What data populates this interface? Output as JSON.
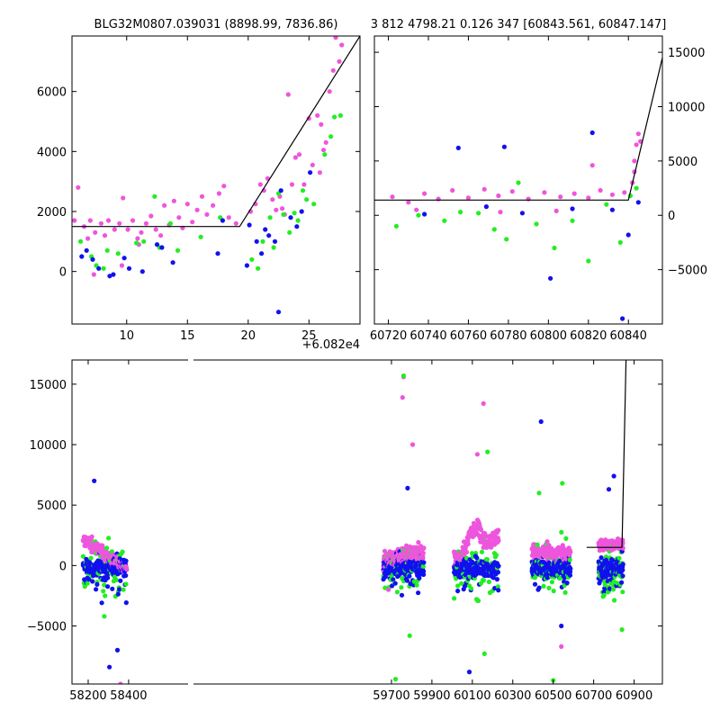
{
  "chart_data": [
    {
      "type": "scatter",
      "title": "BLG32M0807.039031 (8898.99, 7836.86)",
      "xlabel": "",
      "ylabel": "",
      "xlim": [
        5.5,
        29.2
      ],
      "ylim": [
        -1750,
        7850
      ],
      "xticks": [
        10,
        15,
        20,
        25
      ],
      "yticks": [
        0,
        2000,
        4000,
        6000
      ],
      "x_offset_label": "+6.082e4",
      "ytick_side": "left",
      "grid": false,
      "colors": {
        "magenta": "#ee55dd",
        "green": "#22ee22",
        "blue": "#1111ee",
        "line": "#000000"
      },
      "model_line": {
        "x": [
          5.5,
          19.3,
          29.2
        ],
        "y": [
          1500,
          1500,
          7850
        ]
      },
      "series": [
        {
          "color": "magenta",
          "points": [
            [
              5.7,
              1700
            ],
            [
              6.0,
              2800
            ],
            [
              6.5,
              1500
            ],
            [
              6.8,
              1100
            ],
            [
              7.0,
              1700
            ],
            [
              7.4,
              1300
            ],
            [
              7.9,
              1600
            ],
            [
              8.2,
              1200
            ],
            [
              8.5,
              1700
            ],
            [
              9.0,
              1400
            ],
            [
              9.4,
              1600
            ],
            [
              9.7,
              2450
            ],
            [
              10.1,
              1400
            ],
            [
              10.5,
              1700
            ],
            [
              10.9,
              1100
            ],
            [
              11.2,
              1300
            ],
            [
              11.6,
              1600
            ],
            [
              12.0,
              1850
            ],
            [
              12.4,
              1400
            ],
            [
              12.8,
              1200
            ],
            [
              13.1,
              2200
            ],
            [
              13.5,
              1550
            ],
            [
              13.9,
              2350
            ],
            [
              14.3,
              1800
            ],
            [
              14.6,
              1450
            ],
            [
              15.0,
              2250
            ],
            [
              15.4,
              1650
            ],
            [
              15.8,
              2050
            ],
            [
              16.2,
              2500
            ],
            [
              16.6,
              1900
            ],
            [
              17.1,
              2200
            ],
            [
              17.6,
              2600
            ],
            [
              18.0,
              2850
            ],
            [
              18.4,
              1800
            ],
            [
              19.0,
              1600
            ],
            [
              20.2,
              2000
            ],
            [
              20.6,
              2250
            ],
            [
              21.0,
              2900
            ],
            [
              21.3,
              2700
            ],
            [
              21.6,
              3100
            ],
            [
              22.0,
              2400
            ],
            [
              22.3,
              2050
            ],
            [
              22.6,
              2500
            ],
            [
              23.0,
              1900
            ],
            [
              23.3,
              5900
            ],
            [
              23.6,
              2900
            ],
            [
              23.9,
              3800
            ],
            [
              24.2,
              3900
            ],
            [
              24.6,
              2900
            ],
            [
              25.0,
              5100
            ],
            [
              25.3,
              3550
            ],
            [
              25.7,
              5200
            ],
            [
              26.0,
              4900
            ],
            [
              26.4,
              4300
            ],
            [
              26.7,
              6000
            ],
            [
              27.0,
              6700
            ],
            [
              27.2,
              7800
            ],
            [
              27.5,
              7000
            ],
            [
              27.7,
              7550
            ],
            [
              26.2,
              4050
            ],
            [
              25.9,
              3300
            ],
            [
              22.8,
              2100
            ],
            [
              7.3,
              -100
            ],
            [
              9.6,
              200
            ],
            [
              11.0,
              900
            ]
          ]
        },
        {
          "color": "green",
          "points": [
            [
              6.2,
              1000
            ],
            [
              7.1,
              500
            ],
            [
              7.5,
              200
            ],
            [
              8.1,
              100
            ],
            [
              8.4,
              700
            ],
            [
              9.3,
              600
            ],
            [
              10.8,
              950
            ],
            [
              11.4,
              1000
            ],
            [
              12.3,
              2500
            ],
            [
              12.7,
              800
            ],
            [
              13.6,
              1600
            ],
            [
              14.2,
              700
            ],
            [
              16.1,
              1150
            ],
            [
              17.7,
              1800
            ],
            [
              20.3,
              400
            ],
            [
              20.8,
              100
            ],
            [
              21.2,
              1000
            ],
            [
              21.8,
              1800
            ],
            [
              22.1,
              800
            ],
            [
              22.5,
              2600
            ],
            [
              22.9,
              1900
            ],
            [
              23.4,
              1300
            ],
            [
              23.8,
              1950
            ],
            [
              24.1,
              1700
            ],
            [
              24.5,
              2700
            ],
            [
              24.8,
              2400
            ],
            [
              25.4,
              2250
            ],
            [
              26.3,
              3900
            ],
            [
              26.8,
              4500
            ],
            [
              27.1,
              5150
            ],
            [
              27.6,
              5200
            ]
          ]
        },
        {
          "color": "blue",
          "points": [
            [
              6.3,
              500
            ],
            [
              6.7,
              700
            ],
            [
              7.2,
              400
            ],
            [
              7.7,
              100
            ],
            [
              8.6,
              -150
            ],
            [
              8.9,
              -100
            ],
            [
              9.8,
              450
            ],
            [
              10.2,
              100
            ],
            [
              11.3,
              0
            ],
            [
              12.5,
              900
            ],
            [
              12.9,
              800
            ],
            [
              13.8,
              300
            ],
            [
              17.5,
              600
            ],
            [
              17.9,
              1700
            ],
            [
              19.9,
              200
            ],
            [
              20.1,
              1550
            ],
            [
              20.7,
              1000
            ],
            [
              21.1,
              600
            ],
            [
              21.4,
              1400
            ],
            [
              21.7,
              1200
            ],
            [
              22.2,
              1000
            ],
            [
              22.7,
              2700
            ],
            [
              22.5,
              -1350
            ],
            [
              23.5,
              1800
            ],
            [
              24.0,
              1500
            ],
            [
              24.4,
              2000
            ],
            [
              25.1,
              3300
            ]
          ]
        }
      ]
    },
    {
      "type": "scatter",
      "title": "3 812 4798.21 0.126 347 [60843.561, 60847.147]",
      "xlabel": "",
      "ylabel": "",
      "xlim": [
        60713,
        60857
      ],
      "ylim": [
        -10000,
        16500
      ],
      "xticks": [
        60720,
        60740,
        60760,
        60780,
        60800,
        60820,
        60840
      ],
      "yticks": [
        -5000,
        0,
        5000,
        10000,
        15000
      ],
      "ytick_side": "right",
      "grid": false,
      "model_line": {
        "x": [
          60713,
          60840,
          60857
        ],
        "y": [
          1400,
          1400,
          14500
        ]
      },
      "series": [
        {
          "color": "magenta",
          "points": [
            [
              60722,
              1700
            ],
            [
              60730,
              1200
            ],
            [
              60738,
              2000
            ],
            [
              60745,
              1500
            ],
            [
              60752,
              2300
            ],
            [
              60760,
              1600
            ],
            [
              60768,
              2400
            ],
            [
              60775,
              1800
            ],
            [
              60782,
              2200
            ],
            [
              60790,
              1500
            ],
            [
              60798,
              2100
            ],
            [
              60806,
              1700
            ],
            [
              60813,
              2000
            ],
            [
              60820,
              1600
            ],
            [
              60826,
              2300
            ],
            [
              60832,
              1900
            ],
            [
              60838,
              2100
            ],
            [
              60842,
              3000
            ],
            [
              60843,
              5000
            ],
            [
              60844,
              6500
            ],
            [
              60845,
              7500
            ],
            [
              60846,
              6800
            ],
            [
              60843,
              4000
            ],
            [
              60822,
              4600
            ],
            [
              60734,
              500
            ],
            [
              60776,
              300
            ],
            [
              60804,
              400
            ]
          ]
        },
        {
          "color": "green",
          "points": [
            [
              60724,
              -1000
            ],
            [
              60735,
              0
            ],
            [
              60748,
              -500
            ],
            [
              60756,
              300
            ],
            [
              60765,
              200
            ],
            [
              60773,
              -1300
            ],
            [
              60779,
              -2200
            ],
            [
              60785,
              3000
            ],
            [
              60794,
              -800
            ],
            [
              60803,
              -3000
            ],
            [
              60812,
              -500
            ],
            [
              60820,
              -4200
            ],
            [
              60829,
              1000
            ],
            [
              60836,
              -2500
            ],
            [
              60841,
              1800
            ],
            [
              60844,
              2500
            ]
          ]
        },
        {
          "color": "blue",
          "points": [
            [
              60738,
              100
            ],
            [
              60755,
              6200
            ],
            [
              60769,
              800
            ],
            [
              60778,
              6300
            ],
            [
              60787,
              200
            ],
            [
              60801,
              -5800
            ],
            [
              60812,
              600
            ],
            [
              60822,
              7600
            ],
            [
              60832,
              500
            ],
            [
              60840,
              -1800
            ],
            [
              60845,
              1200
            ],
            [
              60837,
              -9500
            ]
          ]
        }
      ]
    },
    {
      "type": "scatter",
      "title": "",
      "xlabel": "",
      "ylabel": "",
      "xlim": [
        58120,
        61040
      ],
      "ylim": [
        -9800,
        17000
      ],
      "xticks": [
        58200,
        58400,
        59700,
        59900,
        60100,
        60300,
        60500,
        60700,
        60900
      ],
      "yticks": [
        -5000,
        0,
        5000,
        10000,
        15000
      ],
      "ytick_side": "left",
      "grid": false,
      "model_line": {
        "x": [
          60665,
          60840,
          60860
        ],
        "y": [
          1500,
          1500,
          17000
        ]
      },
      "seasons": [
        {
          "x": [
            58175,
            58390
          ],
          "mag_base": [
            2200,
            -200
          ],
          "mag_spread": 700,
          "blue_base": 0
        },
        {
          "x": [
            59660,
            59860
          ],
          "mag_base": [
            300,
            1200
          ],
          "mag_spread": 800,
          "blue_base": 0
        },
        {
          "x": [
            60010,
            60230
          ],
          "mag_base": [
            400,
            2400
          ],
          "mag_spread": 900,
          "blue_base": 0
        },
        {
          "x": [
            60395,
            60585
          ],
          "mag_base": [
            1200,
            1000
          ],
          "mag_spread": 800,
          "blue_base": 0
        },
        {
          "x": [
            60725,
            60845
          ],
          "mag_base": [
            1700,
            1700
          ],
          "mag_spread": 500,
          "blue_base": 0
        }
      ],
      "outliers": {
        "magenta": [
          [
            59760,
            15600
          ],
          [
            59755,
            13900
          ],
          [
            59805,
            10000
          ],
          [
            60155,
            13400
          ],
          [
            60125,
            9200
          ],
          [
            58360,
            -9800
          ],
          [
            60540,
            -6700
          ],
          [
            59685,
            -2000
          ]
        ],
        "green": [
          [
            59760,
            15700
          ],
          [
            60175,
            9400
          ],
          [
            60430,
            6000
          ],
          [
            60545,
            6800
          ],
          [
            58280,
            -4200
          ],
          [
            59720,
            -9400
          ],
          [
            60160,
            -7300
          ],
          [
            60500,
            -9500
          ],
          [
            60840,
            -5300
          ],
          [
            59790,
            -5800
          ]
        ],
        "blue": [
          [
            60440,
            11900
          ],
          [
            60800,
            7400
          ],
          [
            60775,
            6300
          ],
          [
            58230,
            7000
          ],
          [
            59780,
            6400
          ],
          [
            58305,
            -8400
          ],
          [
            58345,
            -7000
          ],
          [
            60085,
            -8800
          ],
          [
            60540,
            -5000
          ]
        ]
      }
    }
  ]
}
